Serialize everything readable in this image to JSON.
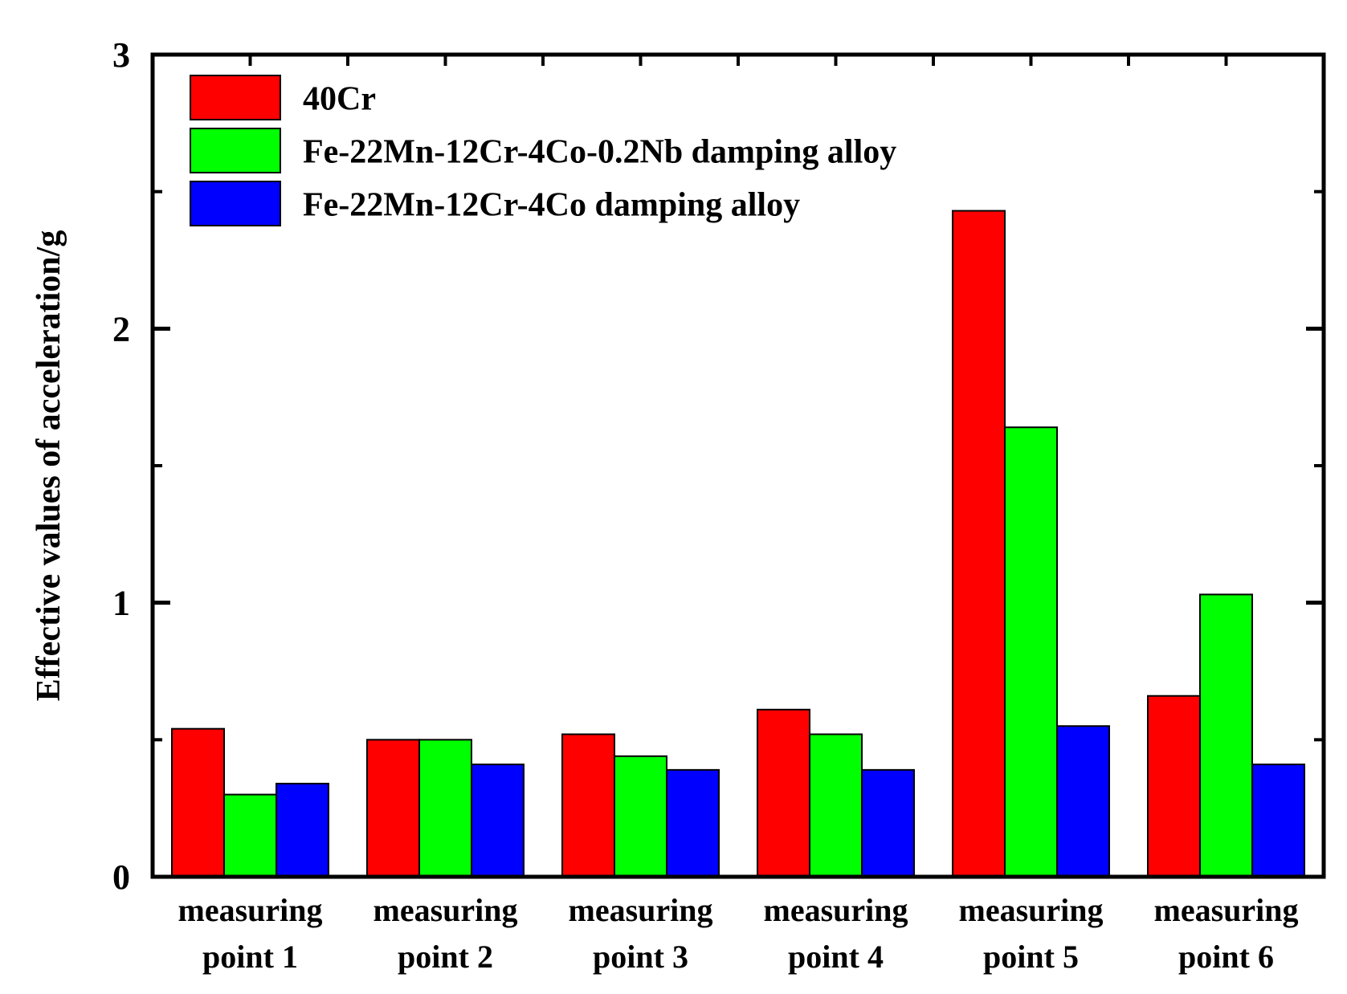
{
  "chart_data": {
    "type": "bar",
    "title": "",
    "xlabel": "",
    "ylabel": "Effective values of acceleration/g",
    "ylim": [
      0,
      3
    ],
    "yticks": [
      0,
      1,
      2,
      3
    ],
    "yticks_minor": [
      0.5,
      1.5,
      2.5
    ],
    "grid": false,
    "legend_position": "top-left",
    "categories": [
      [
        "measuring",
        "point 1"
      ],
      [
        "measuring",
        "point 2"
      ],
      [
        "measuring",
        "point 3"
      ],
      [
        "measuring",
        "point 4"
      ],
      [
        "measuring",
        "point 5"
      ],
      [
        "measuring",
        "point 6"
      ]
    ],
    "series": [
      {
        "name": "40Cr",
        "color": "#ff0000",
        "values": [
          0.54,
          0.5,
          0.52,
          0.61,
          2.43,
          0.66
        ]
      },
      {
        "name": "Fe-22Mn-12Cr-4Co-0.2Nb damping alloy",
        "color": "#00ff00",
        "values": [
          0.3,
          0.5,
          0.44,
          0.52,
          1.64,
          1.03
        ]
      },
      {
        "name": "Fe-22Mn-12Cr-4Co damping alloy",
        "color": "#0000ff",
        "values": [
          0.34,
          0.41,
          0.39,
          0.39,
          0.55,
          0.41
        ]
      }
    ]
  }
}
